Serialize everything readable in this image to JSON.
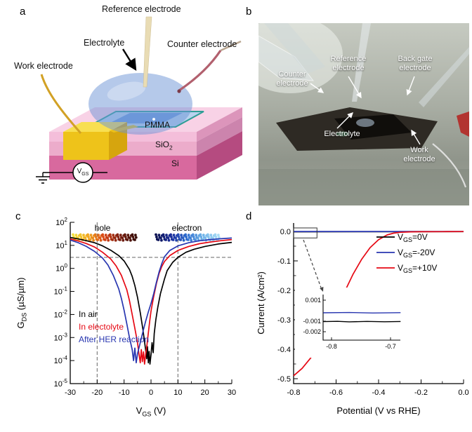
{
  "figure": {
    "panel_labels": {
      "a": "a",
      "b": "b",
      "c": "c",
      "d": "d"
    }
  },
  "panel_a": {
    "labels": {
      "reference_electrode": "Reference electrode",
      "electrolyte": "Electrolyte",
      "counter_electrode": "Counter electrode",
      "work_electrode": "Work electrode",
      "pmma": "PMMA",
      "sio2_base": "SiO",
      "sio2_sub": "2",
      "si": "Si",
      "vgs_base": "V",
      "vgs_sub": "GS"
    },
    "colors": {
      "si_front": "#d8699e",
      "si_side": "#b54b80",
      "sio2_front": "#ecaccb",
      "sio2_side": "#cc84ad",
      "pmma_front": "#f4beda",
      "pmma_side": "#dc95bb",
      "pmma_top": "#f8d2e6",
      "window_fill": "#b9d2ee",
      "window_stroke": "#2f9e96",
      "channel": "#5e92d8",
      "droplet": "rgba(108,148,214,0.5)",
      "pad_top": "#f8df52",
      "pad_front": "#eec31a",
      "pad_side": "#d6a50e",
      "work_wire": "#d2a125",
      "reference_rod": "#e9dcb4",
      "counter_wire": "#b2606e"
    }
  },
  "panel_b": {
    "labels": {
      "counter_electrode": "Counter electrode",
      "reference_electrode": "Reference electrode",
      "back_gate_electrode": "Back gate electrode",
      "electrolyte": "Electrolyte",
      "work_electrode": "Work electrode"
    }
  },
  "chart_data": [
    {
      "id": "c",
      "type": "line",
      "x_label_parts": [
        "V",
        "GS",
        " (V)"
      ],
      "y_label_parts": [
        "G",
        "DS",
        " (µS/µm)"
      ],
      "x_range": [
        -30,
        30
      ],
      "x_ticks": [
        -30,
        -20,
        -10,
        0,
        10,
        20,
        30
      ],
      "y_scale": "log",
      "y_tick_exponents": [
        2,
        1,
        0,
        -1,
        -2,
        -3,
        -4,
        -5
      ],
      "dashed_vlines": [
        -20,
        10
      ],
      "dashed_hline_value": 3,
      "annotations": {
        "hole": "hole",
        "electron": "electron"
      },
      "hole_gradient": [
        "#f6e13a",
        "#f0a41e",
        "#d84315",
        "#7a1f10",
        "#3a0d08"
      ],
      "electron_gradient": [
        "#0a1050",
        "#1b2f9e",
        "#2f6fd0",
        "#6fb3e8",
        "#a8dcf5"
      ],
      "series": [
        {
          "name": "In air",
          "color": "#000000",
          "points": [
            [
              -30,
              22
            ],
            [
              -27,
              19
            ],
            [
              -24,
              16
            ],
            [
              -21,
              13
            ],
            [
              -18,
              9.5
            ],
            [
              -15,
              6.2
            ],
            [
              -12,
              3.6
            ],
            [
              -10,
              2.1
            ],
            [
              -8,
              0.9
            ],
            [
              -7,
              0.45
            ],
            [
              -6,
              0.18
            ],
            [
              -5,
              0.055
            ],
            [
              -4,
              0.012
            ],
            [
              -3,
              0.0022
            ],
            [
              -2.5,
              0.0008
            ],
            [
              -2,
              0.0003
            ],
            [
              -1.6,
              0.00012
            ],
            [
              -1.3,
              0.0004
            ],
            [
              -1,
              8e-05
            ],
            [
              -0.7,
              0.00025
            ],
            [
              -0.4,
              7e-05
            ],
            [
              0,
              0.00018
            ],
            [
              0.4,
              0.0006
            ],
            [
              0.8,
              0.00022
            ],
            [
              1.2,
              0.0015
            ],
            [
              1.8,
              0.006
            ],
            [
              2.5,
              0.02
            ],
            [
              3.5,
              0.08
            ],
            [
              5,
              0.35
            ],
            [
              6,
              0.8
            ],
            [
              8,
              1.8
            ],
            [
              10,
              3
            ],
            [
              13,
              5
            ],
            [
              16,
              6.8
            ],
            [
              20,
              9
            ],
            [
              25,
              11.5
            ],
            [
              30,
              13.5
            ]
          ]
        },
        {
          "name": "In electolyte",
          "color": "#e60914",
          "points": [
            [
              -30,
              19
            ],
            [
              -27,
              15.5
            ],
            [
              -24,
              12
            ],
            [
              -21,
              8.5
            ],
            [
              -18,
              5
            ],
            [
              -15,
              2.6
            ],
            [
              -13,
              1.3
            ],
            [
              -11,
              0.5
            ],
            [
              -9,
              0.12
            ],
            [
              -8,
              0.04
            ],
            [
              -7,
              0.01
            ],
            [
              -6,
              0.0025
            ],
            [
              -5,
              0.0006
            ],
            [
              -4.5,
              0.0002
            ],
            [
              -4,
              8e-05
            ],
            [
              -3.6,
              0.0003
            ],
            [
              -3.2,
              9e-05
            ],
            [
              -2.8,
              0.00024
            ],
            [
              -2.4,
              7e-05
            ],
            [
              -2,
              0.00018
            ],
            [
              -1.5,
              0.0005
            ],
            [
              -1,
              0.0016
            ],
            [
              -0.5,
              0.005
            ],
            [
              0,
              0.014
            ],
            [
              1,
              0.06
            ],
            [
              2,
              0.22
            ],
            [
              3,
              0.6
            ],
            [
              4,
              1.2
            ],
            [
              5,
              2
            ],
            [
              7,
              3.6
            ],
            [
              10,
              6
            ],
            [
              14,
              9
            ],
            [
              18,
              11.8
            ],
            [
              22,
              14
            ],
            [
              26,
              16
            ],
            [
              30,
              17.8
            ]
          ]
        },
        {
          "name": "After HER reaction",
          "color": "#2836b0",
          "points": [
            [
              -30,
              17
            ],
            [
              -27,
              13
            ],
            [
              -24,
              9
            ],
            [
              -21,
              5.5
            ],
            [
              -18,
              2.8
            ],
            [
              -16,
              1.4
            ],
            [
              -14,
              0.5
            ],
            [
              -12,
              0.13
            ],
            [
              -11,
              0.05
            ],
            [
              -10,
              0.015
            ],
            [
              -9,
              0.004
            ],
            [
              -8,
              0.001
            ],
            [
              -7,
              0.0003
            ],
            [
              -6.5,
              0.0001
            ],
            [
              -6,
              0.00035
            ],
            [
              -5.5,
              8e-05
            ],
            [
              -5,
              0.0002
            ],
            [
              -4,
              0.0006
            ],
            [
              -3,
              0.0018
            ],
            [
              -2,
              0.005
            ],
            [
              -1,
              0.013
            ],
            [
              0,
              0.03
            ],
            [
              1,
              0.08
            ],
            [
              2,
              0.25
            ],
            [
              3,
              0.7
            ],
            [
              4,
              1.6
            ],
            [
              5,
              3.2
            ],
            [
              7,
              6
            ],
            [
              10,
              9.5
            ],
            [
              14,
              13
            ],
            [
              18,
              15.8
            ],
            [
              22,
              17.8
            ],
            [
              26,
              19.4
            ],
            [
              30,
              20.8
            ]
          ]
        }
      ]
    },
    {
      "id": "d",
      "type": "line",
      "x_label": "Potential (V vs RHE)",
      "y_label": "Current (A/cm²)",
      "x_range": [
        -0.8,
        0
      ],
      "y_range": [
        -0.5,
        0
      ],
      "x_ticks": [
        -0.8,
        -0.6,
        -0.4,
        -0.2,
        0
      ],
      "x_tick_labels": [
        "-0.8",
        "-0.6",
        "-0.4",
        "-0.2",
        "0.0"
      ],
      "y_ticks": [
        0,
        -0.1,
        -0.2,
        -0.3,
        -0.4,
        -0.5
      ],
      "y_tick_labels": [
        "0.0",
        "-0.1",
        "-0.2",
        "-0.3",
        "-0.4",
        "-0.5"
      ],
      "series": [
        {
          "label_parts": [
            "V",
            "GS",
            "=0V"
          ],
          "color": "#000000",
          "points": [
            [
              0,
              -0.0008
            ],
            [
              -0.4,
              -0.001
            ],
            [
              -0.8,
              -0.0012
            ]
          ]
        },
        {
          "label_parts": [
            "V",
            "GS",
            "=-20V"
          ],
          "color": "#2836b0",
          "points": [
            [
              0,
              -0.0002
            ],
            [
              -0.4,
              -0.00025
            ],
            [
              -0.8,
              -0.0003
            ]
          ]
        },
        {
          "label_parts": [
            "V",
            "GS",
            "=+10V"
          ],
          "color": "#e60914",
          "points": [
            [
              0,
              -0.0005
            ],
            [
              -0.1,
              -0.0008
            ],
            [
              -0.2,
              -0.001
            ],
            [
              -0.25,
              -0.0015
            ],
            [
              -0.3,
              -0.003
            ],
            [
              -0.33,
              -0.006
            ],
            [
              -0.36,
              -0.012
            ],
            [
              -0.4,
              -0.028
            ],
            [
              -0.44,
              -0.055
            ],
            [
              -0.48,
              -0.095
            ],
            [
              -0.52,
              -0.145
            ],
            [
              -0.56,
              -0.205
            ],
            [
              -0.6,
              -0.27
            ],
            [
              -0.64,
              -0.33
            ],
            [
              -0.68,
              -0.385
            ],
            [
              -0.72,
              -0.43
            ],
            [
              -0.76,
              -0.465
            ],
            [
              -0.8,
              -0.49
            ]
          ]
        }
      ],
      "zoom_box": {
        "x": [
          -0.8,
          -0.69
        ],
        "y": [
          0.012,
          -0.022
        ]
      },
      "inset": {
        "x_ticks": [
          -0.8,
          -0.7
        ],
        "x_tick_labels": [
          "-0.8",
          "-0.7"
        ],
        "y_ticks": [
          0.001,
          -0.001,
          -0.002
        ],
        "y_tick_labels": [
          "0.001",
          "-0.001",
          "-0.002"
        ],
        "series": [
          {
            "color": "#000000",
            "points": [
              [
                -0.814,
                -0.00104
              ],
              [
                -0.79,
                -0.00101
              ],
              [
                -0.77,
                -0.00106
              ],
              [
                -0.74,
                -0.00102
              ],
              [
                -0.71,
                -0.00105
              ],
              [
                -0.683,
                -0.00103
              ]
            ]
          },
          {
            "color": "#2836b0",
            "points": [
              [
                -0.814,
                -0.0002
              ],
              [
                -0.77,
                -0.00017
              ],
              [
                -0.73,
                -0.00022
              ],
              [
                -0.683,
                -0.00019
              ]
            ]
          }
        ]
      }
    }
  ]
}
